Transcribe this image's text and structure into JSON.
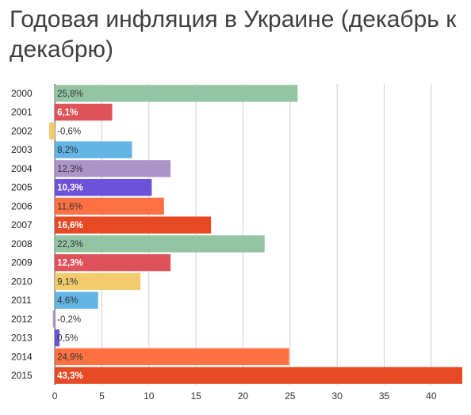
{
  "chart_data": {
    "type": "bar",
    "orientation": "horizontal",
    "title": "Годовая инфляция в Украине (декабрь к декабрю)",
    "xlabel": "",
    "ylabel": "",
    "xlim": [
      -0.6,
      43.3
    ],
    "xticks": [
      "0",
      "5",
      "10",
      "15",
      "20",
      "25",
      "30",
      "35",
      "40"
    ],
    "xtick_values": [
      0,
      5,
      10,
      15,
      20,
      25,
      30,
      35,
      40
    ],
    "grid": true,
    "legend": "none",
    "categories": [
      "2000",
      "2001",
      "2002",
      "2003",
      "2004",
      "2005",
      "2006",
      "2007",
      "2008",
      "2009",
      "2010",
      "2011",
      "2012",
      "2013",
      "2014",
      "2015"
    ],
    "values": [
      25.8,
      6.1,
      -0.6,
      8.2,
      12.3,
      10.3,
      11.6,
      16.6,
      22.3,
      12.3,
      9.1,
      4.6,
      -0.2,
      0.5,
      24.9,
      43.3
    ],
    "labels": [
      "25,8%",
      "6,1%",
      "-0,6%",
      "8,2%",
      "12,3%",
      "10,3%",
      "11,6%",
      "16,6%",
      "22,3%",
      "12,3%",
      "9,1%",
      "4,6%",
      "-0,2%",
      "0,5%",
      "24,9%",
      "43,3%"
    ],
    "colors": [
      "#93c4a4",
      "#e0525a",
      "#f2cb6c",
      "#62b5e5",
      "#ad94c9",
      "#6b52d9",
      "#ff7043",
      "#e64a25",
      "#93c4a4",
      "#e0525a",
      "#f2cb6c",
      "#62b5e5",
      "#ad94c9",
      "#6b52d9",
      "#ff7043",
      "#e64a25"
    ],
    "label_colors": [
      "#333333",
      "#ffffff",
      "#333333",
      "#333333",
      "#333333",
      "#ffffff",
      "#333333",
      "#ffffff",
      "#333333",
      "#ffffff",
      "#333333",
      "#333333",
      "#333333",
      "#333333",
      "#333333",
      "#ffffff"
    ],
    "label_bold": [
      false,
      true,
      false,
      false,
      false,
      true,
      false,
      true,
      false,
      true,
      false,
      false,
      false,
      false,
      false,
      true
    ]
  }
}
